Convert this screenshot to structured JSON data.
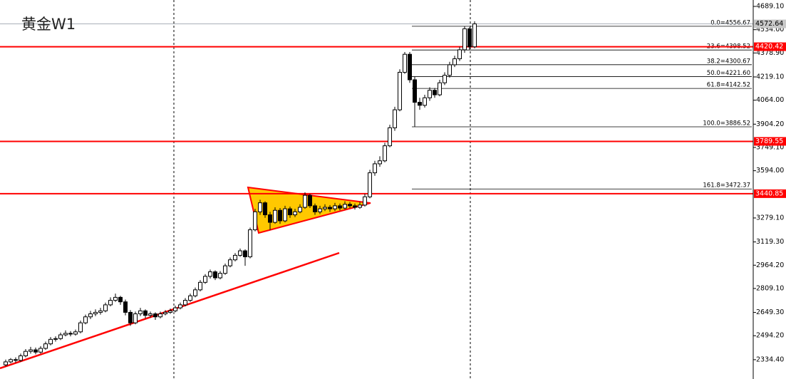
{
  "chart_data": {
    "type": "candlestick",
    "title": "黄金W1",
    "ylim": [
      2205.7,
      4731.8
    ],
    "yticks": [
      {
        "value": 4689.1,
        "label": "4689.10"
      },
      {
        "value": 4534,
        "label": "4534.00"
      },
      {
        "value": 4378.9,
        "label": "4378.90"
      },
      {
        "value": 4219.1,
        "label": "4219.10"
      },
      {
        "value": 4064,
        "label": "4064.00"
      },
      {
        "value": 3904.2,
        "label": "3904.20"
      },
      {
        "value": 3749.1,
        "label": "3749.10"
      },
      {
        "value": 3594,
        "label": "3594.00"
      },
      {
        "value": 3279.1,
        "label": "3279.10"
      },
      {
        "value": 3119.3,
        "label": "3119.30"
      },
      {
        "value": 2964.2,
        "label": "2964.20"
      },
      {
        "value": 2809.1,
        "label": "2809.10"
      },
      {
        "value": 2649.3,
        "label": "2649.30"
      },
      {
        "value": 2494.2,
        "label": "2494.20"
      },
      {
        "value": 2334.4,
        "label": "2334.40"
      }
    ],
    "bull_color": "#ffffff",
    "bear_color": "#000000",
    "candles": [
      [
        2300,
        2335,
        2290,
        2320
      ],
      [
        2320,
        2345,
        2310,
        2335
      ],
      [
        2335,
        2350,
        2315,
        2330
      ],
      [
        2330,
        2375,
        2320,
        2360
      ],
      [
        2360,
        2405,
        2350,
        2390
      ],
      [
        2390,
        2420,
        2375,
        2400
      ],
      [
        2400,
        2415,
        2370,
        2385
      ],
      [
        2385,
        2425,
        2375,
        2410
      ],
      [
        2410,
        2455,
        2400,
        2440
      ],
      [
        2440,
        2485,
        2430,
        2470
      ],
      [
        2470,
        2490,
        2455,
        2475
      ],
      [
        2475,
        2515,
        2465,
        2500
      ],
      [
        2500,
        2530,
        2490,
        2510
      ],
      [
        2510,
        2525,
        2490,
        2505
      ],
      [
        2505,
        2535,
        2495,
        2520
      ],
      [
        2520,
        2595,
        2510,
        2580
      ],
      [
        2580,
        2635,
        2570,
        2620
      ],
      [
        2620,
        2660,
        2605,
        2640
      ],
      [
        2640,
        2670,
        2625,
        2650
      ],
      [
        2650,
        2680,
        2635,
        2660
      ],
      [
        2660,
        2715,
        2650,
        2700
      ],
      [
        2700,
        2750,
        2690,
        2730
      ],
      [
        2730,
        2775,
        2720,
        2750
      ],
      [
        2750,
        2760,
        2700,
        2720
      ],
      [
        2720,
        2735,
        2630,
        2650
      ],
      [
        2650,
        2665,
        2560,
        2580
      ],
      [
        2580,
        2655,
        2570,
        2640
      ],
      [
        2640,
        2680,
        2625,
        2660
      ],
      [
        2660,
        2670,
        2610,
        2630
      ],
      [
        2630,
        2655,
        2615,
        2640
      ],
      [
        2640,
        2650,
        2600,
        2620
      ],
      [
        2620,
        2655,
        2610,
        2640
      ],
      [
        2640,
        2665,
        2630,
        2650
      ],
      [
        2650,
        2675,
        2640,
        2660
      ],
      [
        2660,
        2695,
        2650,
        2680
      ],
      [
        2680,
        2715,
        2670,
        2700
      ],
      [
        2700,
        2745,
        2690,
        2730
      ],
      [
        2730,
        2775,
        2720,
        2760
      ],
      [
        2760,
        2815,
        2750,
        2800
      ],
      [
        2800,
        2865,
        2790,
        2850
      ],
      [
        2850,
        2905,
        2840,
        2890
      ],
      [
        2890,
        2935,
        2875,
        2920
      ],
      [
        2920,
        2930,
        2865,
        2880
      ],
      [
        2880,
        2925,
        2870,
        2910
      ],
      [
        2910,
        2975,
        2900,
        2960
      ],
      [
        2960,
        3015,
        2950,
        3000
      ],
      [
        3000,
        3045,
        2990,
        3030
      ],
      [
        3030,
        3075,
        3020,
        3060
      ],
      [
        3060,
        3070,
        2960,
        3020
      ],
      [
        3020,
        3215,
        3010,
        3200
      ],
      [
        3200,
        3340,
        3190,
        3320
      ],
      [
        3320,
        3400,
        3300,
        3380
      ],
      [
        3380,
        3390,
        3280,
        3300
      ],
      [
        3300,
        3320,
        3200,
        3250
      ],
      [
        3250,
        3350,
        3240,
        3330
      ],
      [
        3330,
        3345,
        3240,
        3260
      ],
      [
        3260,
        3360,
        3250,
        3340
      ],
      [
        3340,
        3355,
        3280,
        3300
      ],
      [
        3300,
        3340,
        3285,
        3320
      ],
      [
        3320,
        3370,
        3310,
        3350
      ],
      [
        3350,
        3450,
        3340,
        3430
      ],
      [
        3430,
        3440,
        3345,
        3360
      ],
      [
        3360,
        3375,
        3300,
        3320
      ],
      [
        3320,
        3360,
        3305,
        3340
      ],
      [
        3340,
        3370,
        3325,
        3350
      ],
      [
        3350,
        3365,
        3320,
        3340
      ],
      [
        3340,
        3380,
        3325,
        3360
      ],
      [
        3360,
        3375,
        3330,
        3345
      ],
      [
        3345,
        3390,
        3335,
        3370
      ],
      [
        3370,
        3385,
        3345,
        3360
      ],
      [
        3360,
        3375,
        3335,
        3350
      ],
      [
        3350,
        3385,
        3340,
        3365
      ],
      [
        3365,
        3440,
        3355,
        3420
      ],
      [
        3420,
        3600,
        3410,
        3580
      ],
      [
        3580,
        3660,
        3560,
        3640
      ],
      [
        3640,
        3690,
        3620,
        3660
      ],
      [
        3660,
        3780,
        3650,
        3760
      ],
      [
        3760,
        3900,
        3750,
        3880
      ],
      [
        3880,
        4020,
        3860,
        4000
      ],
      [
        4000,
        4270,
        3990,
        4250
      ],
      [
        4250,
        4385,
        4240,
        4370
      ],
      [
        4370,
        4385,
        4180,
        4200
      ],
      [
        4200,
        4220,
        3887,
        4050
      ],
      [
        4050,
        4080,
        4000,
        4030
      ],
      [
        4030,
        4100,
        4015,
        4080
      ],
      [
        4080,
        4150,
        4060,
        4130
      ],
      [
        4130,
        4145,
        4080,
        4100
      ],
      [
        4100,
        4200,
        4090,
        4180
      ],
      [
        4180,
        4250,
        4165,
        4230
      ],
      [
        4230,
        4320,
        4215,
        4300
      ],
      [
        4300,
        4360,
        4285,
        4340
      ],
      [
        4340,
        4420,
        4325,
        4400
      ],
      [
        4400,
        4556,
        4380,
        4540
      ],
      [
        4540,
        4550,
        4400,
        4420
      ],
      [
        4420,
        4590,
        4410,
        4572.64
      ]
    ],
    "fib_levels": [
      {
        "label": "0.0=4556.67",
        "value": 4556.67
      },
      {
        "label": "23.6=4398.52",
        "value": 4398.52
      },
      {
        "label": "38.2=4300.67",
        "value": 4300.67
      },
      {
        "label": "50.0=4221.60",
        "value": 4221.6
      },
      {
        "label": "61.8=4142.52",
        "value": 4142.52
      },
      {
        "label": "100.0=3886.52",
        "value": 3886.52
      },
      {
        "label": "161.8=3472.37",
        "value": 3472.37
      }
    ],
    "price_lines": [
      {
        "value": 4420.42,
        "color": "#ff0000"
      },
      {
        "value": 3789.55,
        "color": "#ff0000"
      },
      {
        "value": 3440.85,
        "color": "#ff0000"
      }
    ],
    "bid": {
      "value": 4572.64,
      "color": "#8c96a0"
    }
  }
}
